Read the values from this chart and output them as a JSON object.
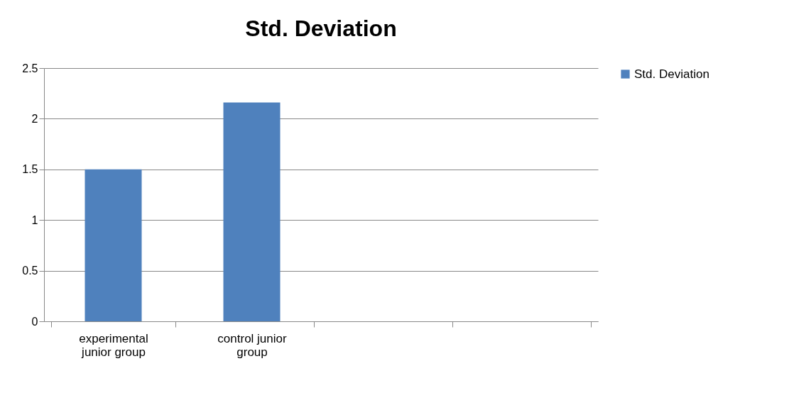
{
  "chart_data": {
    "type": "bar",
    "title": "Std. Deviation",
    "categories": [
      "experimental junior group",
      "control junior group",
      null,
      null
    ],
    "series": [
      {
        "name": "Std. Deviation",
        "color": "#4f81bd",
        "values": [
          1.5,
          2.16,
          null,
          null
        ]
      }
    ],
    "ylim": [
      0,
      2.5
    ],
    "yticks": [
      0,
      0.5,
      1,
      1.5,
      2,
      2.5
    ],
    "grid": "y",
    "legend": "right"
  }
}
